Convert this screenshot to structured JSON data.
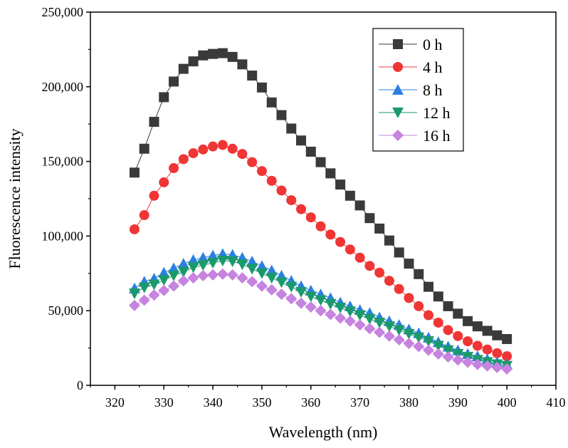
{
  "chart_data": {
    "type": "line",
    "title": "",
    "xlabel": "Wavelength (nm)",
    "ylabel": "Fluorescence intensity",
    "xlim": [
      315,
      410
    ],
    "ylim": [
      0,
      250000
    ],
    "xticks": [
      320,
      330,
      340,
      350,
      360,
      370,
      380,
      390,
      400,
      410
    ],
    "yticks": [
      0,
      50000,
      100000,
      150000,
      200000,
      250000
    ],
    "ytick_labels": [
      "0",
      "50,000",
      "100,000",
      "150,000",
      "200,000",
      "250,000"
    ],
    "grid": false,
    "legend_position": "top-right",
    "x": [
      324,
      326,
      328,
      330,
      332,
      334,
      336,
      338,
      340,
      342,
      344,
      346,
      348,
      350,
      352,
      354,
      356,
      358,
      360,
      362,
      364,
      366,
      368,
      370,
      372,
      374,
      376,
      378,
      380,
      382,
      384,
      386,
      388,
      390,
      392,
      394,
      396,
      398,
      400
    ],
    "series": [
      {
        "name": "0 h",
        "color": "#3a3a3a",
        "marker": "square",
        "values": [
          142500,
          158500,
          176500,
          193000,
          203500,
          212000,
          217000,
          221000,
          222000,
          222500,
          220000,
          215000,
          207500,
          199500,
          189500,
          181000,
          172000,
          164000,
          156500,
          149500,
          142000,
          134500,
          127000,
          120500,
          112000,
          105000,
          97000,
          89000,
          81500,
          74500,
          66000,
          59500,
          53000,
          48000,
          43000,
          39500,
          36500,
          33500,
          31000
        ]
      },
      {
        "name": "4 h",
        "color": "#f03535",
        "marker": "circle",
        "values": [
          104500,
          114000,
          127000,
          136000,
          145500,
          151500,
          155500,
          158000,
          160000,
          161000,
          158500,
          155000,
          149500,
          143500,
          137000,
          130500,
          124000,
          118000,
          112500,
          106500,
          101000,
          96000,
          91000,
          85500,
          80000,
          75500,
          70000,
          64500,
          58500,
          53000,
          47000,
          42000,
          37000,
          33000,
          29500,
          26500,
          24000,
          21500,
          19500
        ]
      },
      {
        "name": "8 h",
        "color": "#2b7fe0",
        "marker": "triangle-up",
        "values": [
          65000,
          69500,
          71500,
          75500,
          78500,
          81500,
          84000,
          85500,
          87000,
          88000,
          87500,
          85500,
          83000,
          80000,
          77000,
          73500,
          70000,
          66500,
          63500,
          61000,
          58500,
          55500,
          53000,
          50500,
          48500,
          45500,
          43000,
          40500,
          37500,
          35000,
          32000,
          29000,
          26000,
          23500,
          21000,
          19500,
          17500,
          15500,
          14000
        ]
      },
      {
        "name": "12 h",
        "color": "#1a9a6a",
        "marker": "triangle-down",
        "values": [
          61500,
          65500,
          67500,
          70500,
          73500,
          76000,
          79000,
          80500,
          82000,
          83500,
          83000,
          81000,
          78000,
          75000,
          72000,
          69000,
          66000,
          62500,
          59500,
          57000,
          54500,
          52000,
          49500,
          47000,
          44500,
          42000,
          39500,
          37000,
          34500,
          32000,
          29500,
          26500,
          23500,
          21000,
          19000,
          17000,
          15500,
          14000,
          13000
        ]
      },
      {
        "name": "16 h",
        "color": "#c683e0",
        "marker": "diamond",
        "values": [
          53500,
          57000,
          60500,
          63500,
          66500,
          70000,
          72000,
          73500,
          74000,
          74500,
          74000,
          72000,
          69500,
          66500,
          64000,
          61000,
          58000,
          55000,
          52500,
          50000,
          47500,
          45000,
          43000,
          40500,
          38000,
          35500,
          33000,
          30500,
          28000,
          26000,
          23500,
          21000,
          19000,
          17000,
          15500,
          14000,
          13000,
          12000,
          11000
        ]
      }
    ]
  }
}
